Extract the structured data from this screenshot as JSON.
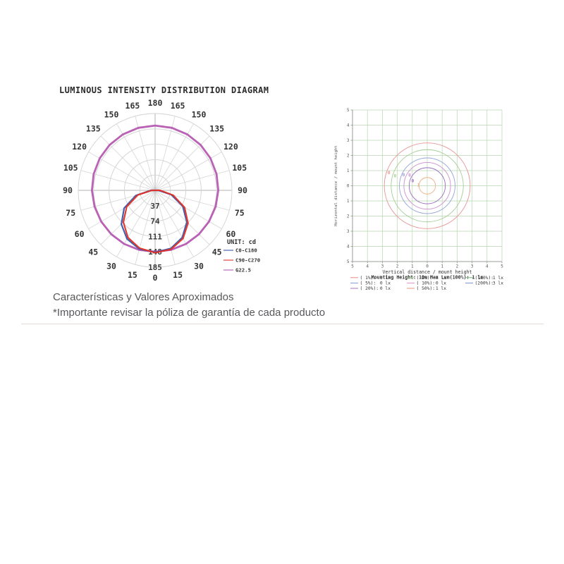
{
  "header": {
    "title": "LUMINOUS INTENSITY DISTRIBUTION DIAGRAM"
  },
  "captions": {
    "line1": "Características y Valores Aproximados",
    "line2": "*Importante revisar la póliza de garantía de cada producto"
  },
  "chart_data": [
    {
      "type": "polar",
      "title": "LUMINOUS INTENSITY DISTRIBUTION DIAGRAM",
      "unit_label": "UNIT: cd",
      "angle_ticks_deg": [
        0,
        15,
        30,
        45,
        60,
        75,
        90,
        105,
        120,
        135,
        150,
        165,
        180
      ],
      "ring_values_cd": [
        37,
        74,
        111,
        148,
        185
      ],
      "max_cd": 185,
      "legend": [
        {
          "label": "C0-C180",
          "color": "#3a58aa"
        },
        {
          "label": "C90-C270",
          "color": "#e03028"
        },
        {
          "label": "G22.5",
          "color": "#b55ab2"
        }
      ],
      "series": [
        {
          "name": "G22.5",
          "color": "#b55ab2",
          "width": 2.8,
          "angles_deg": [
            0,
            15,
            30,
            45,
            60,
            75,
            90,
            105,
            120,
            135,
            150,
            165,
            180,
            195,
            210,
            225,
            240,
            255,
            270,
            285,
            300,
            315,
            330,
            345
          ],
          "radii_cd": [
            148,
            148.3,
            149,
            149.4,
            150,
            151,
            152,
            153,
            154,
            154.8,
            155.4,
            155.8,
            156,
            155.8,
            155.4,
            154.8,
            154,
            153,
            152,
            151,
            150,
            149.4,
            149,
            148.3
          ]
        },
        {
          "name": "C0-C180",
          "color": "#3a58aa",
          "width": 2.2,
          "angles_deg": [
            -90,
            -75,
            -60,
            -45,
            -30,
            -15,
            0,
            15,
            30,
            45,
            60,
            75,
            90
          ],
          "radii_cd": [
            10,
            48,
            86,
            115,
            135,
            146,
            149,
            145,
            131,
            108,
            77,
            40,
            8
          ]
        },
        {
          "name": "C90-C270",
          "color": "#e03028",
          "width": 2.2,
          "angles_deg": [
            -90,
            -75,
            -60,
            -45,
            -30,
            -15,
            0,
            15,
            30,
            45,
            60,
            75,
            90
          ],
          "radii_cd": [
            8,
            43,
            79,
            108,
            131,
            144,
            150,
            147,
            134,
            112,
            82,
            45,
            12
          ]
        }
      ]
    },
    {
      "type": "isolux",
      "x_label": "Vertical distance / mount height",
      "y_label": "Horizontal distance / mount height",
      "subtitle": "Mounting Height: 10m   Max Lum(100%): 1 lx",
      "x_range": [
        -5,
        5
      ],
      "y_range": [
        -5,
        5
      ],
      "ticks": [
        5,
        4,
        3,
        2,
        1,
        0,
        1,
        2,
        3,
        4,
        5
      ],
      "grid_color": "#b9d6b1",
      "contours": [
        {
          "pct": "( 1%)",
          "value_lx": 0,
          "color": "#e89595",
          "radius": 2.85,
          "label": "0",
          "label_x": -2.56,
          "label_y": 0.86
        },
        {
          "pct": "( 2%)",
          "value_lx": 0,
          "color": "#a5cc95",
          "radius": 2.4,
          "label": "0",
          "label_x": -2.15,
          "label_y": 0.65
        },
        {
          "pct": "( 5%)",
          "value_lx": 0,
          "color": "#95a5d8",
          "radius": 1.85,
          "label": "0",
          "label_x": -1.58,
          "label_y": 0.72
        },
        {
          "pct": "( 10%)",
          "value_lx": 0,
          "color": "#cc90cc",
          "radius": 1.55,
          "label": "0",
          "label_x": -1.18,
          "label_y": 0.7
        },
        {
          "pct": "( 20%)",
          "value_lx": 0,
          "color": "#9a6cc0",
          "radius": 1.2,
          "label": "0",
          "label_x": -0.97,
          "label_y": 0.33
        },
        {
          "pct": "( 50%)",
          "value_lx": 1,
          "color": "#f0b080",
          "radius": 0.55,
          "label": "1",
          "label_x": -0.58,
          "label_y": 0.05
        }
      ],
      "legend_columns": [
        [
          {
            "label": "( 1%):",
            "value": "0 lx",
            "color": "#e87878"
          },
          {
            "label": "( 5%):",
            "value": "0 lx",
            "color": "#7890d0"
          },
          {
            "label": "( 20%):",
            "value": "0 lx",
            "color": "#9868b8"
          }
        ],
        [
          {
            "label": "( 2%):",
            "value": "0 lx",
            "color": "#98c888"
          },
          {
            "label": "( 10%):",
            "value": "0 lx",
            "color": "#d888c8"
          },
          {
            "label": "( 50%):",
            "value": "1 lx",
            "color": "#e88868"
          }
        ],
        [
          {
            "label": "(100%):",
            "value": "1 lx",
            "color": "#68a868"
          },
          {
            "label": "(200%):",
            "value": "3 lx",
            "color": "#6888c8"
          }
        ]
      ]
    }
  ]
}
